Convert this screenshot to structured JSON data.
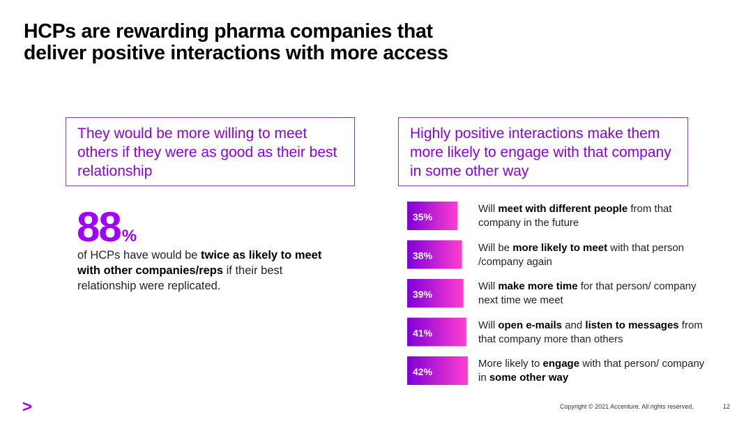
{
  "title": {
    "line1": "HCPs are rewarding pharma companies that",
    "line2": "deliver positive interactions with more access"
  },
  "left_box": "They would be more willing to meet others if they were as good as their best relationship",
  "right_box": "Highly positive interactions make them more likely to engage with that company in some other way",
  "stat": {
    "number": "88",
    "unit": "%",
    "desc_pre": "of HCPs have would be ",
    "desc_bold": "twice as likely to meet with other companies/reps",
    "desc_post": " if their best relationship were replicated."
  },
  "chart_data": {
    "type": "bar",
    "orientation": "horizontal",
    "unit": "%",
    "title": "",
    "xlabel": "",
    "ylabel": "",
    "xlim": [
      0,
      42
    ],
    "categories": [
      "Will meet with different people from that company in the future",
      "Will be more likely to meet with that person /company again",
      "Will make more time for that person/ company next time we meet",
      "Will open e-mails and listen to messages from that company more than others",
      "More likely to engage with that person/ company in some other way"
    ],
    "values": [
      35,
      38,
      39,
      41,
      42
    ],
    "labels": [
      "35%",
      "38%",
      "39%",
      "41%",
      "42%"
    ],
    "gradient": [
      "#7f00d9",
      "#ff3ecf"
    ]
  },
  "rows": [
    [
      {
        "t": "Will ",
        "b": false
      },
      {
        "t": "meet with different people",
        "b": true
      },
      {
        "t": " from that company in the future",
        "b": false
      }
    ],
    [
      {
        "t": "Will be ",
        "b": false
      },
      {
        "t": "more likely to meet",
        "b": true
      },
      {
        "t": " with that person /company again",
        "b": false
      }
    ],
    [
      {
        "t": "Will ",
        "b": false
      },
      {
        "t": "make more time",
        "b": true
      },
      {
        "t": " for that person/ company next time we meet",
        "b": false
      }
    ],
    [
      {
        "t": "Will ",
        "b": false
      },
      {
        "t": "open e-mails",
        "b": true
      },
      {
        "t": " and ",
        "b": false
      },
      {
        "t": "listen to messages",
        "b": true
      },
      {
        "t": " from that company more than others",
        "b": false
      }
    ],
    [
      {
        "t": "More likely to ",
        "b": false
      },
      {
        "t": "engage",
        "b": true
      },
      {
        "t": " with that person/ company in ",
        "b": false
      },
      {
        "t": "some other way",
        "b": true
      }
    ]
  ],
  "logo": ">",
  "footer": {
    "copyright": "Copyright © 2021 Accenture. All rights reserved.",
    "page": "12"
  }
}
